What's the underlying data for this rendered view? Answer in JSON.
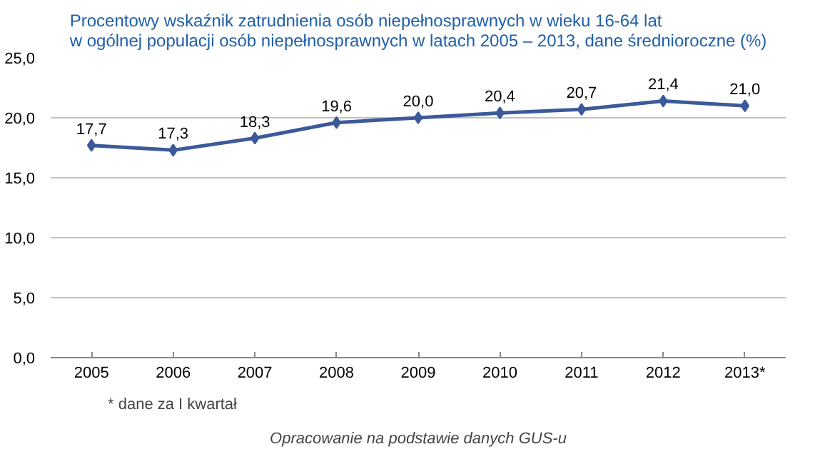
{
  "chart_data": {
    "type": "line",
    "title": "Procentowy wskaźnik zatrudnienia osób niepełnosprawnych w wieku 16-64 lat\nw ogólnej populacji osób niepełnosprawnych w latach 2005 – 2013, dane średnioroczne (%)",
    "categories": [
      "2005",
      "2006",
      "2007",
      "2008",
      "2009",
      "2010",
      "2011",
      "2012",
      "2013*"
    ],
    "series": [
      {
        "color": "#3c5a9a",
        "values": [
          17.7,
          17.3,
          18.3,
          19.6,
          20.0,
          20.4,
          20.7,
          21.4,
          21.0
        ],
        "value_labels": [
          "17,7",
          "17,3",
          "18,3",
          "19,6",
          "20,0",
          "20,4",
          "20,7",
          "21,4",
          "21,0"
        ]
      }
    ],
    "ylim": [
      0,
      25
    ],
    "yticks": [
      {
        "value": 0,
        "label": "0,0"
      },
      {
        "value": 5,
        "label": "5,0"
      },
      {
        "value": 10,
        "label": "10,0"
      },
      {
        "value": 15,
        "label": "15,0"
      },
      {
        "value": 20,
        "label": "20,0"
      },
      {
        "value": 25,
        "label": "25,0"
      }
    ],
    "grid": "y",
    "marker": "diamond",
    "line_style": "solid",
    "annotations": [
      "* dane za I kwartał",
      "Opracowanie na podstawie danych GUS-u"
    ]
  }
}
